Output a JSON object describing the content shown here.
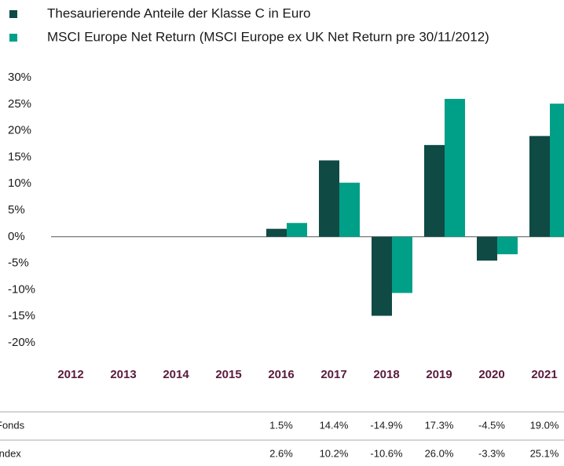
{
  "chart_data": {
    "type": "bar",
    "categories": [
      "2012",
      "2013",
      "2014",
      "2015",
      "2016",
      "2017",
      "2018",
      "2019",
      "2020",
      "2021"
    ],
    "series": [
      {
        "name": "Thesaurierende Anteile der Klasse C in Euro",
        "row_label": "Fonds",
        "color": "#0f4a45",
        "values": [
          null,
          null,
          null,
          null,
          1.5,
          14.4,
          -14.9,
          17.3,
          -4.5,
          19.0
        ],
        "value_labels": [
          null,
          null,
          null,
          null,
          "1.5%",
          "14.4%",
          "-14.9%",
          "17.3%",
          "-4.5%",
          "19.0%"
        ]
      },
      {
        "name": "MSCI Europe Net Return (MSCI Europe ex UK Net Return pre 30/11/2012)",
        "row_label": "Index",
        "color": "#00a088",
        "values": [
          null,
          null,
          null,
          null,
          2.6,
          10.2,
          -10.6,
          26.0,
          -3.3,
          25.1
        ],
        "value_labels": [
          null,
          null,
          null,
          null,
          "2.6%",
          "10.2%",
          "-10.6%",
          "26.0%",
          "-3.3%",
          "25.1%"
        ]
      }
    ],
    "ylim": [
      -20,
      30
    ],
    "yticks": [
      {
        "value": 30,
        "label": "30%"
      },
      {
        "value": 25,
        "label": "25%"
      },
      {
        "value": 20,
        "label": "20%"
      },
      {
        "value": 15,
        "label": "15%"
      },
      {
        "value": 10,
        "label": "10%"
      },
      {
        "value": 5,
        "label": "5%"
      },
      {
        "value": 0,
        "label": "0%"
      },
      {
        "value": -5,
        "label": "-5%"
      },
      {
        "value": -10,
        "label": "-10%"
      },
      {
        "value": -15,
        "label": "-15%"
      },
      {
        "value": -20,
        "label": "-20%"
      }
    ]
  }
}
